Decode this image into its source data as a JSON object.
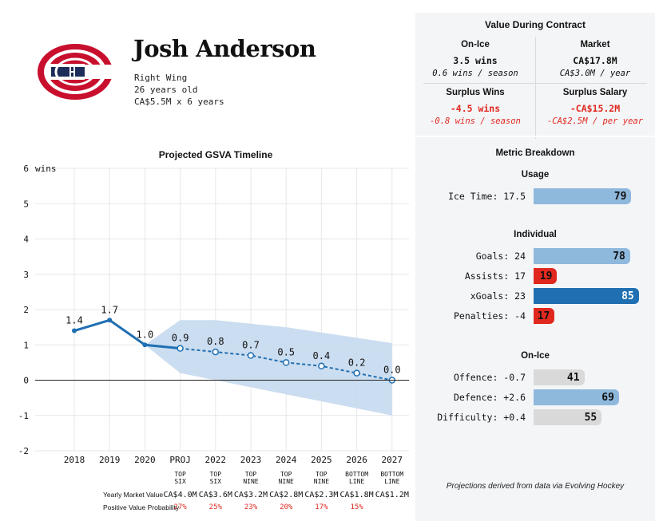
{
  "player": {
    "name": "Josh Anderson",
    "position": "Right Wing",
    "age": "26 years old",
    "contract": "CA$5.5M x 6 years"
  },
  "value_panel": {
    "title": "Value During Contract",
    "on_ice": {
      "title": "On-Ice",
      "value": "3.5 wins",
      "sub": "0.6 wins / season"
    },
    "market": {
      "title": "Market",
      "value": "CA$17.8M",
      "sub": "CA$3.0M / year"
    },
    "surplus_wins": {
      "title": "Surplus Wins",
      "value": "-4.5 wins",
      "sub": "-0.8 wins / season"
    },
    "surplus_salary": {
      "title": "Surplus Salary",
      "value": "-CA$15.2M",
      "sub": "-CA$2.5M / per year"
    }
  },
  "metrics": {
    "title": "Metric Breakdown",
    "groups": [
      {
        "name": "Usage",
        "items": [
          {
            "label": "Ice Time: 17.5",
            "value": 79,
            "color": "#8fb8dd"
          }
        ]
      },
      {
        "name": "Individual",
        "items": [
          {
            "label": "Goals: 24",
            "value": 78,
            "color": "#8fb8dd"
          },
          {
            "label": "Assists: 17",
            "value": 19,
            "color": "#e0281f"
          },
          {
            "label": "xGoals: 23",
            "value": 85,
            "color": "#1f6fb2"
          },
          {
            "label": "Penalties: -4",
            "value": 17,
            "color": "#e0281f"
          }
        ]
      },
      {
        "name": "On-Ice",
        "items": [
          {
            "label": "Offence: -0.7",
            "value": 41,
            "color": "#d9d9d9"
          },
          {
            "label": "Defence: +2.6",
            "value": 69,
            "color": "#8fb8dd"
          },
          {
            "label": "Difficulty: +0.4",
            "value": 55,
            "color": "#d9d9d9"
          }
        ]
      }
    ],
    "source": "Projections derived from data via Evolving Hockey"
  },
  "chart_data": {
    "type": "line",
    "title": "Projected GSVA Timeline",
    "ylabel": "wins",
    "ylim": [
      -2,
      6
    ],
    "yticks": [
      "6",
      "5",
      "4",
      "3",
      "2",
      "1",
      "0",
      "-1",
      "-2"
    ],
    "categories": [
      "2018",
      "2019",
      "2020",
      "PROJ",
      "2022",
      "2023",
      "2024",
      "2025",
      "2026",
      "2027"
    ],
    "series": [
      {
        "values": [
          1.4,
          1.7,
          1.0,
          0.9,
          0.8,
          0.7,
          0.5,
          0.4,
          0.2,
          0.0
        ]
      }
    ],
    "point_labels": [
      "1.4",
      "1.7",
      "1.0",
      "0.9",
      "0.8",
      "0.7",
      "0.5",
      "0.4",
      "0.2",
      "0.0"
    ],
    "band": {
      "upper": [
        1.7,
        1.7,
        1.6,
        1.5,
        1.35,
        1.2,
        1.05
      ],
      "lower": [
        0.2,
        0.0,
        -0.2,
        -0.4,
        -0.6,
        -0.8,
        -1.0
      ]
    },
    "color": "#1f6fb2",
    "band_color": "#c5d9ee",
    "grid": true,
    "roles": [
      "TOP\nSIX",
      "TOP\nSIX",
      "TOP\nNINE",
      "TOP\nNINE",
      "TOP\nNINE",
      "BOTTOM\nLINE",
      "BOTTOM\nLINE"
    ],
    "market_label": "Yearly Market Value",
    "market_values": [
      "CA$4.0M",
      "CA$3.6M",
      "CA$3.2M",
      "CA$2.8M",
      "CA$2.3M",
      "CA$1.8M",
      "CA$1.2M"
    ],
    "prob_label": "Positive Value Probability",
    "probabilities": [
      "27%",
      "25%",
      "23%",
      "20%",
      "17%",
      "15%",
      ""
    ]
  }
}
